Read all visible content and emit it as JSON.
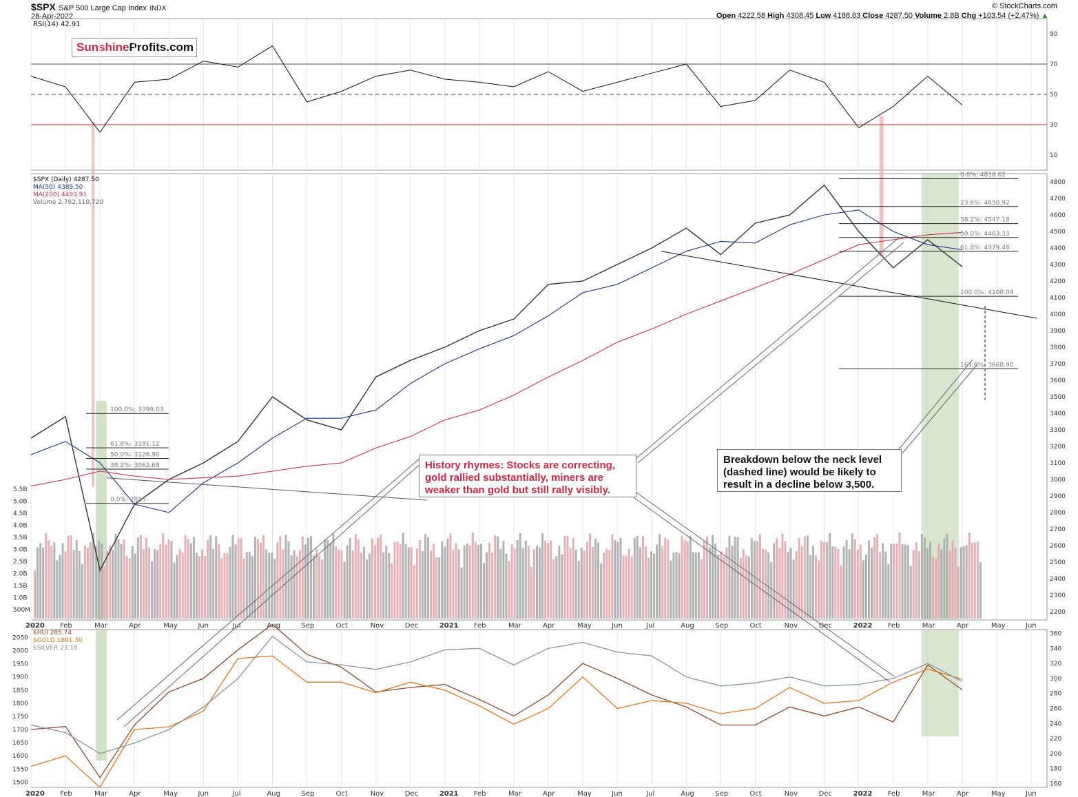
{
  "header": {
    "symbol": "$SPX",
    "name": "S&P 500 Large Cap Index",
    "exchange": "INDX",
    "date": "28-Apr-2022",
    "brand": "© StockCharts.com",
    "quote": {
      "open_label": "Open",
      "open": "4222.58",
      "high_label": "High",
      "high": "4308.45",
      "low_label": "Low",
      "low": "4188.63",
      "close_label": "Close",
      "close": "4287.50",
      "volume_label": "Volume",
      "volume": "2.8B",
      "chg_label": "Chg",
      "chg": "+103.54 (+2.47%)",
      "chg_icon": "up-triangle-icon"
    }
  },
  "logo": {
    "part1": "Sunshine",
    "part2": "Profits.com"
  },
  "legends": {
    "rsi": "RSI(14) 42.91",
    "price": "$SPX (Daily) 4287.50",
    "ma50": "MA(50) 4389.50",
    "ma200": "MA(200) 4493.91",
    "volume": "Volume 2,762,110,720",
    "hui": "$HUI 285.74",
    "gold": "$GOLD 1891.30",
    "silver": "$SILVER 23.18"
  },
  "annotations": {
    "history": [
      "History rhymes: Stocks are correcting,",
      "gold rallied substantially, miners are",
      "weaker than gold but still rally visibly."
    ],
    "breakdown": [
      "Breakdown below the neck level",
      "(dashed line) would be likely to",
      "result in a decline below 3,500."
    ]
  },
  "colors": {
    "red": "#d0314d",
    "blue": "#1f2f8e",
    "hui": "#8b4a2a",
    "gold": "#e8761a",
    "silver": "#8a949c",
    "green_zone": "#b9cfa7",
    "red_zone": "#eaa9a9",
    "callout_red": "#cc2744"
  },
  "chart_data": [
    {
      "type": "line",
      "title": "RSI(14) 42.91",
      "yticks": [
        10,
        30,
        50,
        70,
        90
      ],
      "ylim": [
        0,
        100
      ],
      "reference_lines": [
        70,
        50,
        30
      ],
      "x": [
        "2020-01",
        "2020-02",
        "2020-03",
        "2020-04",
        "2020-05",
        "2020-06",
        "2020-07",
        "2020-08",
        "2020-09",
        "2020-10",
        "2020-11",
        "2020-12",
        "2021-01",
        "2021-02",
        "2021-03",
        "2021-04",
        "2021-05",
        "2021-06",
        "2021-07",
        "2021-08",
        "2021-09",
        "2021-10",
        "2021-11",
        "2021-12",
        "2022-01",
        "2022-02",
        "2022-03",
        "2022-04"
      ],
      "series": [
        {
          "name": "RSI(14)",
          "values": [
            62,
            55,
            25,
            58,
            60,
            72,
            68,
            82,
            45,
            52,
            62,
            66,
            60,
            58,
            55,
            65,
            52,
            58,
            64,
            70,
            42,
            46,
            66,
            58,
            28,
            42,
            62,
            43
          ]
        }
      ]
    },
    {
      "type": "line",
      "title": "$SPX (Daily) 4287.50",
      "yticks": [
        2200,
        2300,
        2400,
        2500,
        2600,
        2700,
        2800,
        2900,
        3000,
        3100,
        3200,
        3300,
        3400,
        3500,
        3600,
        3700,
        3800,
        3900,
        4000,
        4100,
        4200,
        4300,
        4400,
        4500,
        4600,
        4700,
        4800
      ],
      "ylim": [
        2150,
        4850
      ],
      "x": [
        "2020-01",
        "2020-02",
        "2020-03",
        "2020-04",
        "2020-05",
        "2020-06",
        "2020-07",
        "2020-08",
        "2020-09",
        "2020-10",
        "2020-11",
        "2020-12",
        "2021-01",
        "2021-02",
        "2021-03",
        "2021-04",
        "2021-05",
        "2021-06",
        "2021-07",
        "2021-08",
        "2021-09",
        "2021-10",
        "2021-11",
        "2021-12",
        "2022-01",
        "2022-02",
        "2022-03",
        "2022-04"
      ],
      "series": [
        {
          "name": "$SPX",
          "values": [
            3250,
            3380,
            2450,
            2850,
            3000,
            3100,
            3230,
            3500,
            3360,
            3300,
            3620,
            3720,
            3800,
            3900,
            3970,
            4180,
            4200,
            4300,
            4400,
            4520,
            4360,
            4550,
            4600,
            4780,
            4500,
            4280,
            4450,
            4287
          ]
        },
        {
          "name": "MA(50)",
          "values": [
            3150,
            3230,
            3100,
            2850,
            2800,
            2980,
            3100,
            3250,
            3370,
            3370,
            3420,
            3580,
            3700,
            3790,
            3870,
            3990,
            4130,
            4180,
            4280,
            4380,
            4440,
            4430,
            4540,
            4600,
            4630,
            4500,
            4420,
            4389
          ]
        },
        {
          "name": "MA(200)",
          "values": [
            2960,
            3000,
            3050,
            3020,
            3000,
            3010,
            3020,
            3050,
            3080,
            3100,
            3190,
            3260,
            3360,
            3420,
            3510,
            3620,
            3720,
            3830,
            3910,
            4000,
            4080,
            4160,
            4240,
            4330,
            4420,
            4450,
            4480,
            4494
          ]
        }
      ],
      "fibonacci_levels": [
        {
          "label": "0.0%: 4818.62",
          "value": 4818.62
        },
        {
          "label": "23.6%: 4650.92",
          "value": 4650.92
        },
        {
          "label": "38.2%: 4547.18",
          "value": 4547.18
        },
        {
          "label": "50.0%: 4463.33",
          "value": 4463.33
        },
        {
          "label": "61.8%: 4379.48",
          "value": 4379.48
        },
        {
          "label": "100.0%: 4108.04",
          "value": 4108.04
        },
        {
          "label": "161.8%: 3668.90",
          "value": 3668.9
        }
      ],
      "fibonacci_levels_2020": [
        {
          "label": "100.0%: 3399.03",
          "value": 3399.03
        },
        {
          "label": "61.8%: 3191.12",
          "value": 3191.12
        },
        {
          "label": "50.0%: 3126.90",
          "value": 3126.9
        },
        {
          "label": "38.2%: 3062.68",
          "value": 3062.68
        },
        {
          "label": "0.0%: 2855",
          "value": 2855
        }
      ]
    },
    {
      "type": "bar",
      "title": "Volume 2,762,110,720",
      "yticks": [
        "500M",
        "1.0B",
        "1.5B",
        "2.0B",
        "2.5B",
        "3.0B",
        "3.5B",
        "4.0B",
        "4.5B",
        "5.0B",
        "5.5B"
      ]
    },
    {
      "type": "line",
      "title": "$HUI / $GOLD / $SILVER",
      "left_ticks": [
        1500,
        1550,
        1600,
        1650,
        1700,
        1750,
        1800,
        1850,
        1900,
        1950,
        2000,
        2050
      ],
      "right_ticks": [
        160,
        180,
        200,
        220,
        240,
        260,
        280,
        300,
        320,
        340,
        360
      ],
      "x": [
        "2020-01",
        "2020-02",
        "2020-03",
        "2020-04",
        "2020-05",
        "2020-06",
        "2020-07",
        "2020-08",
        "2020-09",
        "2020-10",
        "2020-11",
        "2020-12",
        "2021-01",
        "2021-02",
        "2021-03",
        "2021-04",
        "2021-05",
        "2021-06",
        "2021-07",
        "2021-08",
        "2021-09",
        "2021-10",
        "2021-11",
        "2021-12",
        "2022-01",
        "2022-02",
        "2022-03",
        "2022-04"
      ],
      "series": [
        {
          "name": "$HUI",
          "values": [
            232,
            236,
            168,
            238,
            282,
            300,
            338,
            372,
            332,
            315,
            282,
            288,
            292,
            272,
            250,
            278,
            320,
            300,
            278,
            262,
            238,
            238,
            262,
            250,
            262,
            242,
            318,
            285
          ]
        },
        {
          "name": "$GOLD",
          "values": [
            1560,
            1600,
            1480,
            1700,
            1710,
            1770,
            1970,
            1980,
            1880,
            1880,
            1840,
            1880,
            1850,
            1790,
            1720,
            1780,
            1900,
            1780,
            1810,
            1800,
            1760,
            1780,
            1860,
            1800,
            1810,
            1880,
            1930,
            1891
          ]
        },
        {
          "name": "$SILVER",
          "values": [
            238,
            228,
            200,
            214,
            232,
            262,
            300,
            356,
            322,
            318,
            312,
            322,
            338,
            340,
            318,
            340,
            348,
            335,
            330,
            302,
            290,
            294,
            302,
            290,
            292,
            300,
            320,
            296
          ]
        }
      ]
    }
  ],
  "axis": {
    "months": [
      "2020",
      "Feb",
      "Mar",
      "Apr",
      "May",
      "Jun",
      "Jul",
      "Aug",
      "Sep",
      "Oct",
      "Nov",
      "Dec",
      "2021",
      "Feb",
      "Mar",
      "Apr",
      "May",
      "Jun",
      "Jul",
      "Aug",
      "Sep",
      "Oct",
      "Nov",
      "Dec",
      "2022",
      "Feb",
      "Mar",
      "Apr",
      "May",
      "Jun"
    ]
  }
}
